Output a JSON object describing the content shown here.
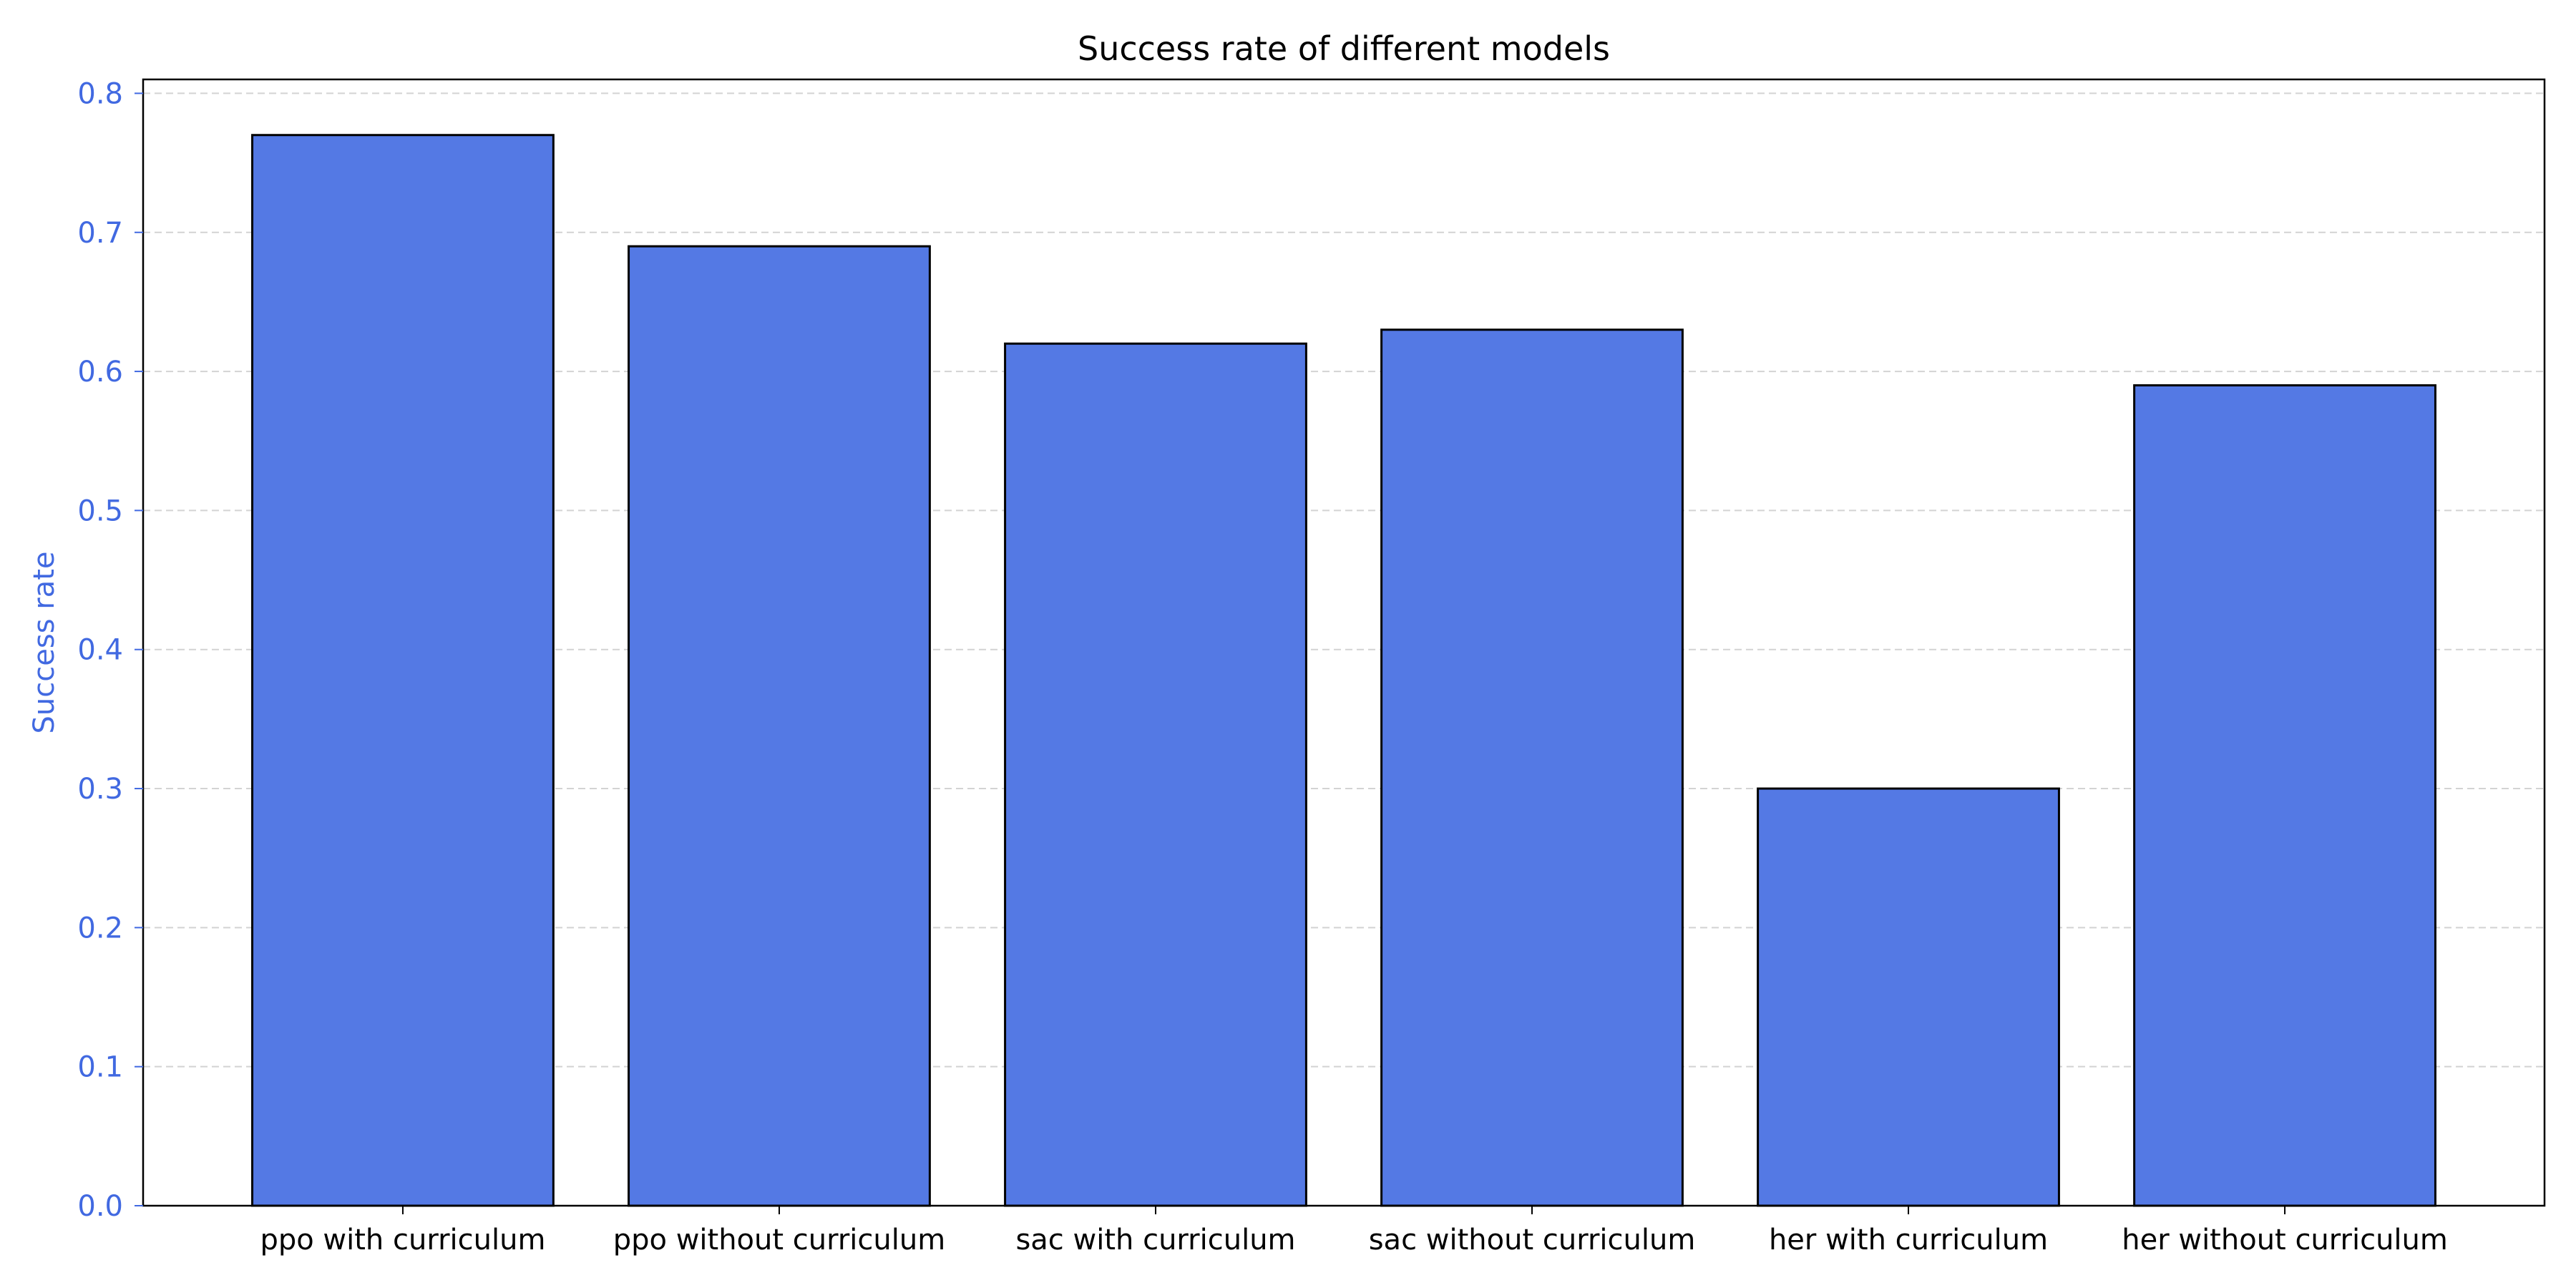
{
  "chart_data": {
    "type": "bar",
    "title": "Success rate of different models",
    "xlabel": "",
    "ylabel": "Success rate",
    "categories": [
      "ppo with curriculum",
      "ppo without curriculum",
      "sac with curriculum",
      "sac without curriculum",
      "her with curriculum",
      "her without curriculum"
    ],
    "values": [
      0.77,
      0.69,
      0.62,
      0.63,
      0.3,
      0.59
    ],
    "ylim": [
      0,
      0.81
    ],
    "yticks": [
      "0.0",
      "0.1",
      "0.2",
      "0.3",
      "0.4",
      "0.5",
      "0.6",
      "0.7",
      "0.8"
    ],
    "grid": "y-dashed",
    "colors": {
      "bar_fill": "#5479e4",
      "bar_edge": "#000000",
      "y_axis_accent": "#4169e1",
      "grid": "#d3d3d3",
      "text": "#000000"
    }
  }
}
